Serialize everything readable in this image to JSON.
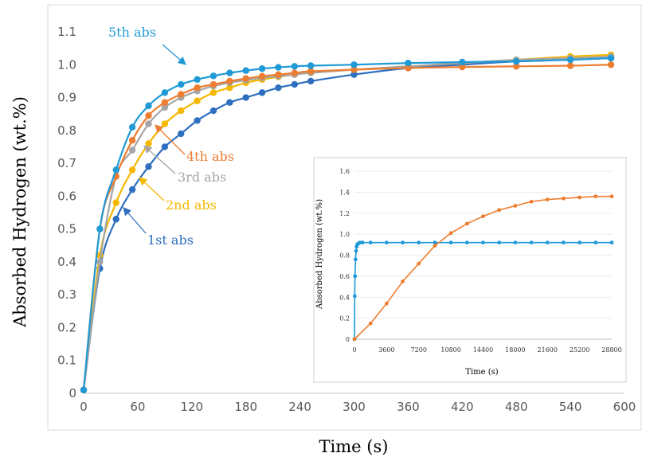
{
  "chart_data": [
    {
      "type": "line",
      "xlabel": "Time (s)",
      "ylabel": "Absorbed Hydrogen (wt.%)",
      "xlim": [
        0,
        600
      ],
      "ylim": [
        0,
        1.1
      ],
      "x_ticks": [
        "0",
        "60",
        "120",
        "180",
        "240",
        "300",
        "360",
        "420",
        "480",
        "540",
        "600"
      ],
      "y_ticks": [
        "0",
        "0.1",
        "0.2",
        "0.3",
        "0.4",
        "0.5",
        "0.6",
        "0.7",
        "0.8",
        "0.9",
        "1.0",
        "1.1"
      ],
      "grid": false,
      "x": [
        0,
        18,
        36,
        54,
        72,
        90,
        108,
        126,
        144,
        162,
        180,
        198,
        216,
        234,
        252,
        300,
        360,
        420,
        480,
        540,
        585
      ],
      "series": [
        {
          "name": "1st abs",
          "color": "#2e6fc0",
          "values": [
            0.01,
            0.38,
            0.53,
            0.62,
            0.69,
            0.75,
            0.79,
            0.83,
            0.86,
            0.885,
            0.9,
            0.915,
            0.93,
            0.94,
            0.95,
            0.97,
            0.99,
            1.0,
            1.01,
            1.015,
            1.02
          ]
        },
        {
          "name": "2nd abs",
          "color": "#f5b800",
          "values": [
            0.01,
            0.42,
            0.58,
            0.68,
            0.76,
            0.82,
            0.86,
            0.89,
            0.915,
            0.93,
            0.945,
            0.955,
            0.963,
            0.97,
            0.975,
            0.985,
            0.995,
            1.005,
            1.015,
            1.025,
            1.03
          ]
        },
        {
          "name": "3rd abs",
          "color": "#a5a5a5",
          "values": [
            0.01,
            0.4,
            0.66,
            0.74,
            0.82,
            0.87,
            0.9,
            0.92,
            0.935,
            0.945,
            0.953,
            0.96,
            0.965,
            0.97,
            0.975,
            0.985,
            0.995,
            1.005,
            1.015,
            1.02,
            1.025
          ]
        },
        {
          "name": "4th abs",
          "color": "#ed7d31",
          "values": [
            0.01,
            0.5,
            0.66,
            0.77,
            0.845,
            0.885,
            0.91,
            0.93,
            0.94,
            0.95,
            0.958,
            0.965,
            0.97,
            0.975,
            0.98,
            0.985,
            0.99,
            0.993,
            0.995,
            0.997,
            1.0
          ]
        },
        {
          "name": "5th abs",
          "color": "#1f9ad6",
          "values": [
            0.01,
            0.5,
            0.68,
            0.81,
            0.875,
            0.915,
            0.94,
            0.955,
            0.966,
            0.975,
            0.982,
            0.988,
            0.992,
            0.995,
            0.997,
            1.0,
            1.005,
            1.008,
            1.01,
            1.015,
            1.02
          ]
        }
      ]
    },
    {
      "type": "line",
      "xlabel": "Time (s)",
      "ylabel": "Absorbed Hydrogen (wt.%)",
      "xlim": [
        0,
        28800
      ],
      "ylim": [
        0,
        1.6
      ],
      "x_ticks": [
        "0",
        "3600",
        "7200",
        "10800",
        "14400",
        "18000",
        "21600",
        "25200",
        "28800"
      ],
      "y_ticks": [
        "0",
        "0.2",
        "0.4",
        "0.6",
        "0.8",
        "1.0",
        "1.2",
        "1.4",
        "1.6"
      ],
      "series": [
        {
          "color": "#1f9ad6",
          "x": [
            0,
            30,
            60,
            120,
            180,
            240,
            300,
            420,
            600,
            900,
            1800,
            3600,
            5400,
            7200,
            9000,
            10800,
            12600,
            14400,
            16200,
            18000,
            19800,
            21600,
            23400,
            25200,
            27000,
            28800
          ],
          "values": [
            0,
            0.41,
            0.6,
            0.76,
            0.84,
            0.88,
            0.9,
            0.91,
            0.92,
            0.92,
            0.92,
            0.92,
            0.92,
            0.92,
            0.92,
            0.92,
            0.92,
            0.92,
            0.92,
            0.92,
            0.92,
            0.92,
            0.92,
            0.92,
            0.92,
            0.92
          ]
        },
        {
          "color": "#ed7d31",
          "x": [
            0,
            1800,
            3600,
            5400,
            7200,
            9000,
            10800,
            12600,
            14400,
            16200,
            18000,
            19800,
            21600,
            23400,
            25200,
            27000,
            28800
          ],
          "values": [
            0,
            0.15,
            0.34,
            0.55,
            0.72,
            0.89,
            1.01,
            1.1,
            1.17,
            1.23,
            1.27,
            1.31,
            1.33,
            1.34,
            1.35,
            1.36,
            1.36
          ]
        }
      ]
    }
  ]
}
